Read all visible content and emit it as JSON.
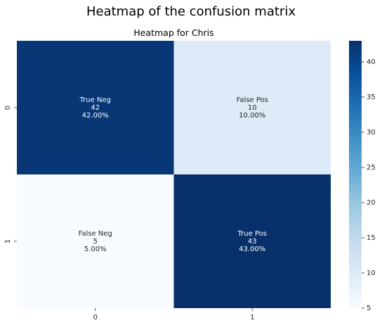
{
  "figure": {
    "suptitle": "Heatmap of the confusion matrix"
  },
  "chart_data": {
    "type": "heatmap",
    "title": "Heatmap for Chris",
    "xlabel": "",
    "ylabel": "",
    "x_tick_labels": [
      "0",
      "1"
    ],
    "y_tick_labels": [
      "0",
      "1"
    ],
    "values": [
      [
        42,
        10
      ],
      [
        5,
        43
      ]
    ],
    "cell_labels": [
      [
        {
          "name": "True Neg",
          "count": "42",
          "percent": "42.00%"
        },
        {
          "name": "False Pos",
          "count": "10",
          "percent": "10.00%"
        }
      ],
      [
        {
          "name": "False Neg",
          "count": "5",
          "percent": "5.00%"
        },
        {
          "name": "True Pos",
          "count": "43",
          "percent": "43.00%"
        }
      ]
    ],
    "colormap": "Blues",
    "colorbar": {
      "range": [
        5,
        43
      ],
      "ticks": [
        5,
        10,
        15,
        20,
        25,
        30,
        35,
        40
      ]
    },
    "colors": {
      "low": "#f7fbff",
      "high": "#08306b",
      "text_on_dark": "#ffffff",
      "text_on_light": "#262626"
    },
    "grid": false
  }
}
